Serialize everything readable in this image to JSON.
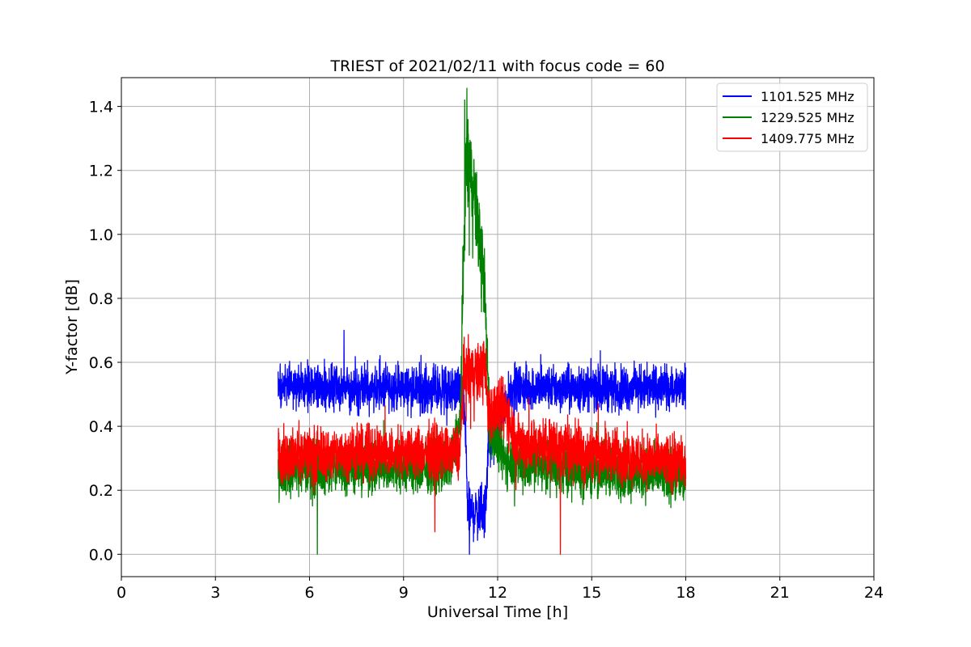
{
  "chart_data": {
    "type": "line",
    "title": "TRIEST of 2021/02/11 with focus code = 60",
    "xlabel": "Universal Time [h]",
    "ylabel": "Y-factor [dB]",
    "xlim": [
      0,
      24
    ],
    "ylim": [
      -0.07,
      1.49
    ],
    "xticks": [
      0,
      3,
      6,
      9,
      12,
      15,
      18,
      21,
      24
    ],
    "xtick_labels": [
      "0",
      "3",
      "6",
      "9",
      "12",
      "15",
      "18",
      "21",
      "24"
    ],
    "yticks": [
      0.0,
      0.2,
      0.4,
      0.6,
      0.8,
      1.0,
      1.2,
      1.4
    ],
    "ytick_labels": [
      "0.0",
      "0.2",
      "0.4",
      "0.6",
      "0.8",
      "1.0",
      "1.2",
      "1.4"
    ],
    "grid": true,
    "legend_position": "top-right",
    "x_range": [
      5.0,
      18.0
    ],
    "series": [
      {
        "name": "1101.525 MHz",
        "color": "#0000ff",
        "profile": [
          [
            5.0,
            0.52,
            0.1
          ],
          [
            9.0,
            0.52,
            0.1
          ],
          [
            10.8,
            0.51,
            0.11
          ],
          [
            10.95,
            0.45,
            0.12
          ],
          [
            11.05,
            0.13,
            0.12
          ],
          [
            11.6,
            0.13,
            0.12
          ],
          [
            11.7,
            0.35,
            0.14
          ],
          [
            12.2,
            0.45,
            0.1
          ],
          [
            12.45,
            0.52,
            0.1
          ],
          [
            18.0,
            0.52,
            0.1
          ]
        ],
        "spikes": [
          [
            7.1,
            0.7
          ],
          [
            11.1,
            0.0
          ]
        ]
      },
      {
        "name": "1229.525 MHz",
        "color": "#008000",
        "profile": [
          [
            5.0,
            0.27,
            0.12
          ],
          [
            9.5,
            0.27,
            0.12
          ],
          [
            10.5,
            0.28,
            0.12
          ],
          [
            10.8,
            0.4,
            0.13
          ],
          [
            10.95,
            1.05,
            0.25
          ],
          [
            11.0,
            1.25,
            0.25
          ],
          [
            11.3,
            1.1,
            0.2
          ],
          [
            11.6,
            0.8,
            0.2
          ],
          [
            11.75,
            0.4,
            0.15
          ],
          [
            12.2,
            0.3,
            0.12
          ],
          [
            13.0,
            0.28,
            0.12
          ],
          [
            18.0,
            0.24,
            0.12
          ]
        ],
        "spikes": [
          [
            6.25,
            0.0
          ],
          [
            10.95,
            1.42
          ]
        ]
      },
      {
        "name": "1409.775 MHz",
        "color": "#ff0000",
        "profile": [
          [
            5.0,
            0.31,
            0.12
          ],
          [
            10.8,
            0.32,
            0.12
          ],
          [
            10.9,
            0.55,
            0.15
          ],
          [
            11.6,
            0.58,
            0.14
          ],
          [
            11.7,
            0.45,
            0.14
          ],
          [
            12.3,
            0.45,
            0.14
          ],
          [
            12.6,
            0.35,
            0.13
          ],
          [
            18.0,
            0.28,
            0.12
          ]
        ],
        "spikes": [
          [
            10.0,
            0.07
          ],
          [
            14.0,
            0.0
          ],
          [
            13.0,
            0.49
          ]
        ]
      }
    ]
  }
}
